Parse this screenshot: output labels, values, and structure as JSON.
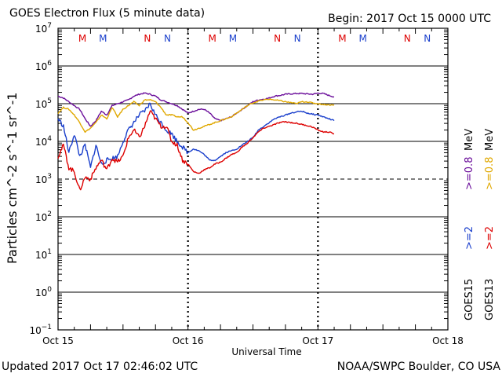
{
  "header": {
    "title": "GOES Electron Flux (5 minute data)",
    "begin": "Begin: 2017 Oct 15 0000 UTC"
  },
  "footer": {
    "updated": "Updated 2017 Oct 17 02:46:02 UTC",
    "credit": "NOAA/SWPC Boulder, CO USA"
  },
  "chart_data": {
    "type": "line",
    "title": "GOES Electron Flux (5 minute data)",
    "xlabel": "Universal Time",
    "ylabel": "Particles cm^-2 s^-1 sr^-1",
    "y_scale": "log",
    "ylim_exp": [
      -1,
      7
    ],
    "xlim_hours": [
      0,
      72
    ],
    "x_ticks": [
      {
        "hour": 0,
        "label": "Oct 15"
      },
      {
        "hour": 24,
        "label": "Oct 16"
      },
      {
        "hour": 48,
        "label": "Oct 17"
      },
      {
        "hour": 72,
        "label": "Oct 18"
      }
    ],
    "y_ticks": [
      {
        "exp": 7,
        "base": "10",
        "sup": "7"
      },
      {
        "exp": 6,
        "base": "10",
        "sup": "6"
      },
      {
        "exp": 5,
        "base": "10",
        "sup": "5"
      },
      {
        "exp": 4,
        "base": "10",
        "sup": "4"
      },
      {
        "exp": 3,
        "base": "10",
        "sup": "3"
      },
      {
        "exp": 2,
        "base": "10",
        "sup": "2"
      },
      {
        "exp": 1,
        "base": "10",
        "sup": "1"
      },
      {
        "exp": 0,
        "base": "10",
        "sup": "0"
      },
      {
        "exp": -1,
        "base": "10",
        "sup": "−1"
      }
    ],
    "threshold_exp": 3,
    "markers": [
      {
        "hour": 4.5,
        "label": "M",
        "color": "#dd0000"
      },
      {
        "hour": 8.3,
        "label": "M",
        "color": "#1a3fcc"
      },
      {
        "hour": 16.5,
        "label": "N",
        "color": "#dd0000"
      },
      {
        "hour": 20.2,
        "label": "N",
        "color": "#1a3fcc"
      },
      {
        "hour": 28.5,
        "label": "M",
        "color": "#dd0000"
      },
      {
        "hour": 32.3,
        "label": "M",
        "color": "#1a3fcc"
      },
      {
        "hour": 40.5,
        "label": "N",
        "color": "#dd0000"
      },
      {
        "hour": 44.2,
        "label": "N",
        "color": "#1a3fcc"
      },
      {
        "hour": 52.5,
        "label": "M",
        "color": "#dd0000"
      },
      {
        "hour": 56.3,
        "label": "M",
        "color": "#1a3fcc"
      },
      {
        "hour": 64.5,
        "label": "N",
        "color": "#dd0000"
      },
      {
        "hour": 68.2,
        "label": "N",
        "color": "#1a3fcc"
      }
    ],
    "legend": {
      "goes15_label": "GOES15",
      "goes13_label": "GOES13",
      "goes15_color": "#000000",
      "goes13_color": "#000000",
      "items": [
        {
          "text": ">=2",
          "color": "#1a3fcc"
        },
        {
          "text": ">=0.8",
          "color": "#6a0d9a"
        },
        {
          "text": "MeV",
          "color": "#000000"
        },
        {
          "text": ">=2",
          "color": "#dd0000"
        },
        {
          "text": ">=0.8",
          "color": "#e0a800"
        },
        {
          "text": "MeV",
          "color": "#000000"
        }
      ]
    },
    "series": [
      {
        "name": "GOES15 >=0.8 MeV",
        "color": "#6a0d9a",
        "points": [
          [
            0,
            5.2
          ],
          [
            1,
            5.15
          ],
          [
            2,
            5.05
          ],
          [
            3,
            4.95
          ],
          [
            4,
            4.85
          ],
          [
            5,
            4.6
          ],
          [
            6,
            4.4
          ],
          [
            7,
            4.55
          ],
          [
            8,
            4.8
          ],
          [
            9,
            4.7
          ],
          [
            10,
            4.95
          ],
          [
            11,
            5.0
          ],
          [
            12,
            5.05
          ],
          [
            13,
            5.1
          ],
          [
            14,
            5.2
          ],
          [
            15,
            5.25
          ],
          [
            16,
            5.28
          ],
          [
            17,
            5.25
          ],
          [
            18,
            5.2
          ],
          [
            19,
            5.1
          ],
          [
            20,
            5.05
          ],
          [
            21,
            5.0
          ],
          [
            22,
            4.95
          ],
          [
            23,
            4.85
          ],
          [
            24,
            4.75
          ],
          [
            25,
            4.8
          ],
          [
            26,
            4.85
          ],
          [
            27,
            4.85
          ],
          [
            28,
            4.75
          ],
          [
            29,
            4.6
          ],
          [
            30,
            4.55
          ],
          [
            31,
            4.6
          ],
          [
            32,
            4.65
          ],
          [
            33,
            4.75
          ],
          [
            34,
            4.85
          ],
          [
            35,
            4.95
          ],
          [
            36,
            5.05
          ],
          [
            37,
            5.1
          ],
          [
            38,
            5.12
          ],
          [
            39,
            5.15
          ],
          [
            40,
            5.2
          ],
          [
            41,
            5.22
          ],
          [
            42,
            5.25
          ],
          [
            43,
            5.26
          ],
          [
            44,
            5.27
          ],
          [
            45,
            5.27
          ],
          [
            46,
            5.26
          ],
          [
            47,
            5.25
          ],
          [
            48,
            5.28
          ],
          [
            49,
            5.27
          ],
          [
            50,
            5.22
          ],
          [
            51,
            5.18
          ]
        ]
      },
      {
        "name": "GOES13 >=0.8 MeV",
        "color": "#e0a800",
        "points": [
          [
            0,
            4.75
          ],
          [
            1,
            4.9
          ],
          [
            2,
            4.85
          ],
          [
            3,
            4.7
          ],
          [
            4,
            4.5
          ],
          [
            5,
            4.25
          ],
          [
            6,
            4.35
          ],
          [
            7,
            4.5
          ],
          [
            8,
            4.7
          ],
          [
            9,
            4.6
          ],
          [
            10,
            4.9
          ],
          [
            11,
            4.65
          ],
          [
            12,
            4.85
          ],
          [
            13,
            4.95
          ],
          [
            14,
            5.05
          ],
          [
            15,
            4.95
          ],
          [
            16,
            5.1
          ],
          [
            17,
            5.1
          ],
          [
            18,
            5.05
          ],
          [
            19,
            4.9
          ],
          [
            20,
            4.7
          ],
          [
            21,
            4.7
          ],
          [
            22,
            4.65
          ],
          [
            23,
            4.65
          ],
          [
            24,
            4.5
          ],
          [
            25,
            4.3
          ],
          [
            26,
            4.35
          ],
          [
            27,
            4.4
          ],
          [
            28,
            4.45
          ],
          [
            29,
            4.5
          ],
          [
            30,
            4.55
          ],
          [
            31,
            4.6
          ],
          [
            32,
            4.65
          ],
          [
            33,
            4.75
          ],
          [
            34,
            4.85
          ],
          [
            35,
            4.95
          ],
          [
            36,
            5.02
          ],
          [
            37,
            5.07
          ],
          [
            38,
            5.1
          ],
          [
            39,
            5.12
          ],
          [
            40,
            5.1
          ],
          [
            41,
            5.08
          ],
          [
            42,
            5.05
          ],
          [
            43,
            5.03
          ],
          [
            44,
            5.0
          ],
          [
            45,
            5.05
          ],
          [
            46,
            5.05
          ],
          [
            47,
            5.02
          ],
          [
            48,
            5.0
          ],
          [
            49,
            4.98
          ],
          [
            50,
            4.97
          ],
          [
            51,
            4.96
          ]
        ]
      },
      {
        "name": "GOES15 >=2 MeV",
        "color": "#1a3fcc",
        "points": [
          [
            0,
            4.6
          ],
          [
            1,
            4.4
          ],
          [
            2,
            3.7
          ],
          [
            3,
            4.2
          ],
          [
            4,
            3.6
          ],
          [
            5,
            3.9
          ],
          [
            6,
            3.3
          ],
          [
            7,
            3.9
          ],
          [
            8,
            3.4
          ],
          [
            9,
            3.5
          ],
          [
            10,
            3.55
          ],
          [
            11,
            3.6
          ],
          [
            12,
            4.0
          ],
          [
            13,
            4.3
          ],
          [
            14,
            4.5
          ],
          [
            15,
            4.7
          ],
          [
            16,
            4.8
          ],
          [
            17,
            5.0
          ],
          [
            18,
            4.7
          ],
          [
            19,
            4.5
          ],
          [
            20,
            4.3
          ],
          [
            21,
            4.2
          ],
          [
            22,
            4.0
          ],
          [
            23,
            3.85
          ],
          [
            24,
            3.7
          ],
          [
            25,
            3.8
          ],
          [
            26,
            3.75
          ],
          [
            27,
            3.65
          ],
          [
            28,
            3.5
          ],
          [
            29,
            3.5
          ],
          [
            30,
            3.6
          ],
          [
            31,
            3.7
          ],
          [
            32,
            3.75
          ],
          [
            33,
            3.8
          ],
          [
            34,
            3.9
          ],
          [
            35,
            4.0
          ],
          [
            36,
            4.1
          ],
          [
            37,
            4.3
          ],
          [
            38,
            4.4
          ],
          [
            39,
            4.5
          ],
          [
            40,
            4.6
          ],
          [
            41,
            4.65
          ],
          [
            42,
            4.7
          ],
          [
            43,
            4.75
          ],
          [
            44,
            4.78
          ],
          [
            45,
            4.8
          ],
          [
            46,
            4.75
          ],
          [
            47,
            4.72
          ],
          [
            48,
            4.7
          ],
          [
            49,
            4.65
          ],
          [
            50,
            4.6
          ],
          [
            51,
            4.55
          ]
        ]
      },
      {
        "name": "GOES13 >=2 MeV",
        "color": "#dd0000",
        "points": [
          [
            0,
            3.6
          ],
          [
            1,
            3.9
          ],
          [
            2,
            3.3
          ],
          [
            3,
            3.2
          ],
          [
            4,
            2.7
          ],
          [
            5,
            3.05
          ],
          [
            6,
            3.0
          ],
          [
            7,
            3.3
          ],
          [
            8,
            3.5
          ],
          [
            9,
            3.25
          ],
          [
            10,
            3.55
          ],
          [
            11,
            3.45
          ],
          [
            12,
            3.6
          ],
          [
            13,
            4.1
          ],
          [
            14,
            4.3
          ],
          [
            15,
            4.1
          ],
          [
            16,
            4.4
          ],
          [
            17,
            4.8
          ],
          [
            18,
            4.6
          ],
          [
            19,
            4.4
          ],
          [
            20,
            4.4
          ],
          [
            21,
            4.0
          ],
          [
            22,
            3.9
          ],
          [
            23,
            3.5
          ],
          [
            24,
            3.4
          ],
          [
            25,
            3.2
          ],
          [
            26,
            3.15
          ],
          [
            27,
            3.25
          ],
          [
            28,
            3.3
          ],
          [
            29,
            3.4
          ],
          [
            30,
            3.45
          ],
          [
            31,
            3.55
          ],
          [
            32,
            3.65
          ],
          [
            33,
            3.7
          ],
          [
            34,
            3.85
          ],
          [
            35,
            3.95
          ],
          [
            36,
            4.1
          ],
          [
            37,
            4.25
          ],
          [
            38,
            4.35
          ],
          [
            39,
            4.4
          ],
          [
            40,
            4.45
          ],
          [
            41,
            4.5
          ],
          [
            42,
            4.52
          ],
          [
            43,
            4.5
          ],
          [
            44,
            4.48
          ],
          [
            45,
            4.45
          ],
          [
            46,
            4.42
          ],
          [
            47,
            4.38
          ],
          [
            48,
            4.3
          ],
          [
            49,
            4.25
          ],
          [
            50,
            4.25
          ],
          [
            51,
            4.2
          ]
        ]
      }
    ]
  }
}
